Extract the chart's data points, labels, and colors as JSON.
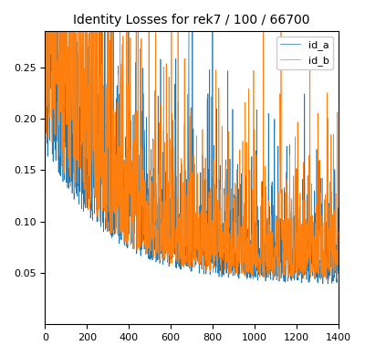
{
  "title": "Identity Losses for rek7 / 100 / 66700",
  "n_steps": 1400,
  "color_a": "#1f77b4",
  "color_b": "#ff7f0e",
  "label_a": "id_a",
  "label_b": "id_b",
  "xlim": [
    0,
    1400
  ],
  "ylim": [
    0.0,
    0.285
  ],
  "yticks": [
    0.05,
    0.1,
    0.15,
    0.2,
    0.25
  ],
  "legend_loc": "upper right",
  "title_fontsize": 10,
  "linewidth": 0.5
}
